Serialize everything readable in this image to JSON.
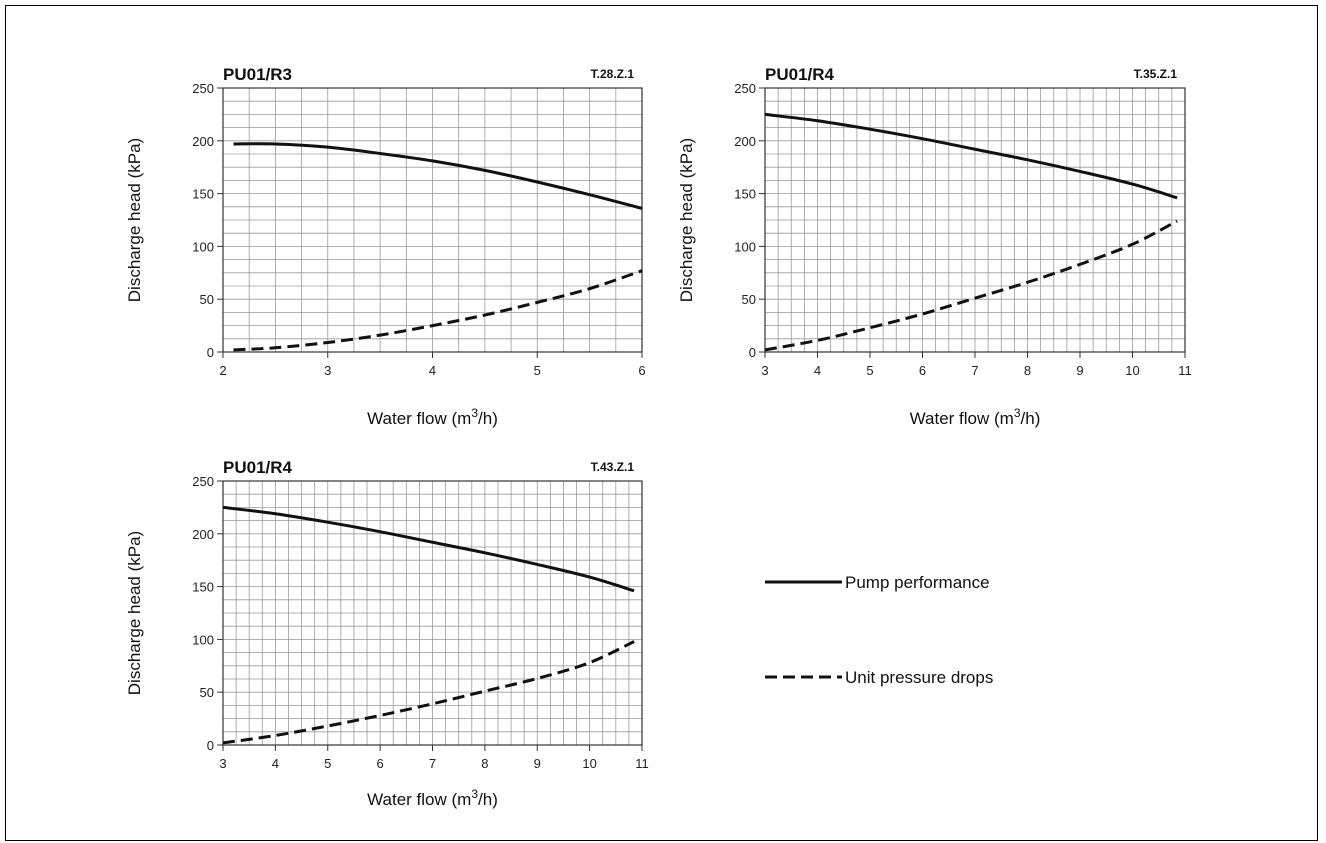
{
  "legend": {
    "items": [
      {
        "label": "Pump performance",
        "style": "solid"
      },
      {
        "label": "Unit pressure drops",
        "style": "dashed"
      }
    ]
  },
  "chart_data": [
    {
      "type": "line",
      "title": "PU01/R3",
      "code": "T.28.Z.1",
      "xlabel": "Water flow (m³/h)",
      "ylabel": "Discharge head (kPa)",
      "xlim": [
        2,
        6
      ],
      "ylim": [
        0,
        250
      ],
      "xticks": [
        2,
        3,
        4,
        5,
        6
      ],
      "yticks": [
        0,
        50,
        100,
        150,
        200,
        250
      ],
      "grid": true,
      "series": [
        {
          "name": "Pump performance",
          "style": "solid",
          "x": [
            2.1,
            2.5,
            3.0,
            3.5,
            4.0,
            4.5,
            5.0,
            5.5,
            6.0
          ],
          "y": [
            197,
            197,
            194,
            188,
            181,
            172,
            161,
            149,
            136
          ]
        },
        {
          "name": "Unit pressure drops",
          "style": "dashed",
          "x": [
            2.1,
            2.5,
            3.0,
            3.5,
            4.0,
            4.5,
            5.0,
            5.5,
            6.0
          ],
          "y": [
            2,
            4,
            9,
            16,
            25,
            35,
            47,
            60,
            77
          ]
        }
      ]
    },
    {
      "type": "line",
      "title": "PU01/R4",
      "code": "T.35.Z.1",
      "xlabel": "Water flow (m³/h)",
      "ylabel": "Discharge head (kPa)",
      "xlim": [
        3,
        11
      ],
      "ylim": [
        0,
        250
      ],
      "xticks": [
        3,
        4,
        5,
        6,
        7,
        8,
        9,
        10,
        11
      ],
      "yticks": [
        0,
        50,
        100,
        150,
        200,
        250
      ],
      "grid": true,
      "series": [
        {
          "name": "Pump performance",
          "style": "solid",
          "x": [
            3,
            4,
            5,
            6,
            7,
            8,
            9,
            10,
            10.85
          ],
          "y": [
            225,
            219,
            211,
            202,
            192,
            182,
            171,
            159,
            146
          ]
        },
        {
          "name": "Unit pressure drops",
          "style": "dashed",
          "x": [
            3,
            4,
            5,
            6,
            7,
            8,
            9,
            10,
            10.85
          ],
          "y": [
            2,
            11,
            23,
            36,
            51,
            66,
            83,
            102,
            124
          ]
        }
      ]
    },
    {
      "type": "line",
      "title": "PU01/R4",
      "code": "T.43.Z.1",
      "xlabel": "Water flow (m³/h)",
      "ylabel": "Discharge head (kPa)",
      "xlim": [
        3,
        11
      ],
      "ylim": [
        0,
        250
      ],
      "xticks": [
        3,
        4,
        5,
        6,
        7,
        8,
        9,
        10,
        11
      ],
      "yticks": [
        0,
        50,
        100,
        150,
        200,
        250
      ],
      "grid": true,
      "series": [
        {
          "name": "Pump performance",
          "style": "solid",
          "x": [
            3,
            4,
            5,
            6,
            7,
            8,
            9,
            10,
            10.85
          ],
          "y": [
            225,
            219,
            211,
            202,
            192,
            182,
            171,
            159,
            146
          ]
        },
        {
          "name": "Unit pressure drops",
          "style": "dashed",
          "x": [
            3,
            4,
            5,
            6,
            7,
            8,
            9,
            10,
            10.85
          ],
          "y": [
            2,
            9,
            18,
            28,
            39,
            51,
            63,
            78,
            98
          ]
        }
      ]
    }
  ]
}
